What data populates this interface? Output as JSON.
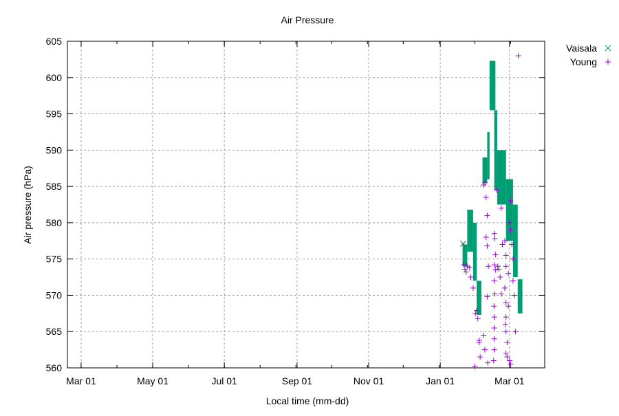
{
  "chart_data": {
    "type": "scatter",
    "title": "Air Pressure",
    "xlabel": "Local time (mm-dd)",
    "ylabel": "Air pressure (hPa)",
    "x_unit": "days since Mar 01",
    "xlim": [
      -11.7,
      395
    ],
    "ylim": [
      560,
      605
    ],
    "grid": true,
    "legend_position": "outside-top-right",
    "xticks": [
      {
        "day": 0,
        "label": "Mar 01"
      },
      {
        "day": 61,
        "label": "May 01"
      },
      {
        "day": 122,
        "label": "Jul 01"
      },
      {
        "day": 184,
        "label": "Sep 01"
      },
      {
        "day": 245,
        "label": "Nov 01"
      },
      {
        "day": 306,
        "label": "Jan 01"
      },
      {
        "day": 365,
        "label": "Mar 01"
      }
    ],
    "yticks": [
      560,
      565,
      570,
      575,
      580,
      585,
      590,
      595,
      600,
      605
    ],
    "series": [
      {
        "name": "Vaisala",
        "marker": "x",
        "color": "#009e73",
        "bands": [
          [
            325,
            329,
            574,
            577
          ],
          [
            329,
            334,
            576,
            581.8
          ],
          [
            334,
            337,
            572,
            580
          ],
          [
            337,
            341,
            567.3,
            572
          ],
          [
            342,
            346,
            585.5,
            589
          ],
          [
            346,
            348,
            586,
            592.5
          ],
          [
            348,
            353,
            595.5,
            602.3
          ],
          [
            352,
            354.5,
            584.5,
            595.5
          ],
          [
            354.5,
            362,
            582.5,
            590
          ],
          [
            362,
            368,
            577.5,
            586
          ],
          [
            368,
            372,
            572.5,
            582.5
          ],
          [
            372,
            376,
            567.5,
            572.2
          ]
        ],
        "points": [
          [
            325.5,
            577.1
          ]
        ]
      },
      {
        "name": "Young",
        "marker": "+",
        "color": "#9400d3",
        "points": [
          [
            326,
            574.2
          ],
          [
            327,
            573.6
          ],
          [
            328,
            573.2
          ],
          [
            329,
            574
          ],
          [
            331,
            573.8
          ],
          [
            332,
            572.5
          ],
          [
            334,
            571
          ],
          [
            336,
            567.5
          ],
          [
            337,
            567.9
          ],
          [
            338,
            566.8
          ],
          [
            339,
            563.5
          ],
          [
            339.2,
            563.8
          ],
          [
            340,
            561.5
          ],
          [
            335.5,
            560.2
          ],
          [
            343,
            585.2
          ],
          [
            344,
            585.5
          ],
          [
            345,
            583.5
          ],
          [
            346,
            581
          ],
          [
            345,
            578
          ],
          [
            346,
            576.8
          ],
          [
            347,
            574
          ],
          [
            346,
            569.8
          ],
          [
            346.5,
            560.7
          ],
          [
            344,
            562.5
          ],
          [
            343,
            564.5
          ],
          [
            352,
            574.2
          ],
          [
            352,
            572
          ],
          [
            352.5,
            570.2
          ],
          [
            351.8,
            568.5
          ],
          [
            352,
            567
          ],
          [
            352,
            565.5
          ],
          [
            352,
            564
          ],
          [
            352,
            562.5
          ],
          [
            351.5,
            561
          ],
          [
            353,
            575.6
          ],
          [
            352.5,
            577.8
          ],
          [
            352,
            578.5
          ],
          [
            353,
            573.5
          ],
          [
            354,
            584.5
          ],
          [
            355,
            574
          ],
          [
            356,
            573.6
          ],
          [
            357,
            572.5
          ],
          [
            358,
            570.2
          ],
          [
            359,
            577
          ],
          [
            358,
            582
          ],
          [
            361,
            577.5
          ],
          [
            362,
            575.5
          ],
          [
            362,
            574
          ],
          [
            361,
            571
          ],
          [
            362,
            569
          ],
          [
            362,
            567
          ],
          [
            361.5,
            566
          ],
          [
            362,
            565
          ],
          [
            363,
            563.5
          ],
          [
            362,
            562
          ],
          [
            363,
            561.5
          ],
          [
            364,
            573
          ],
          [
            364,
            568.5
          ],
          [
            365,
            580
          ],
          [
            366,
            583
          ],
          [
            366,
            579
          ],
          [
            367,
            577
          ],
          [
            368,
            575
          ],
          [
            368,
            572
          ],
          [
            369,
            570
          ],
          [
            370,
            565
          ],
          [
            365,
            561
          ],
          [
            366,
            560.5
          ],
          [
            372.5,
            603
          ]
        ]
      }
    ]
  }
}
